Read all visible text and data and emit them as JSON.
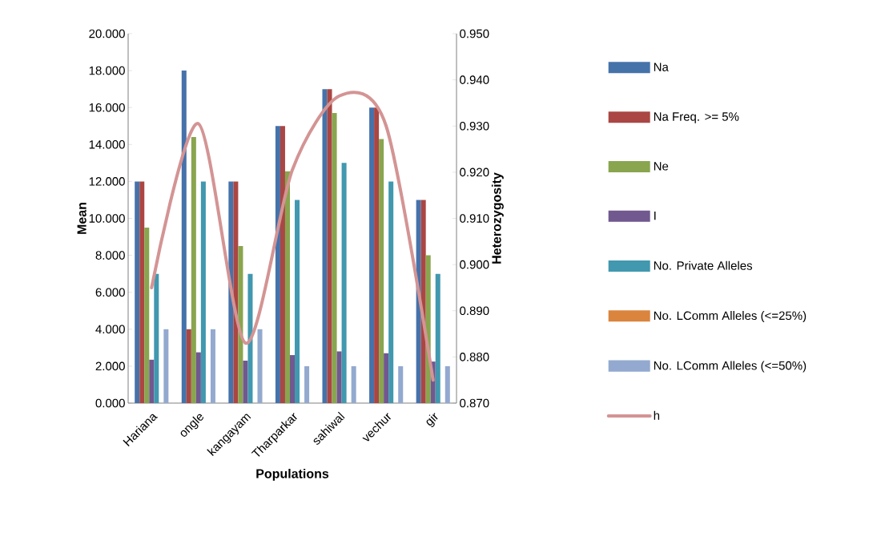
{
  "chart_data": {
    "type": "bar",
    "xlabel": "Populations",
    "ylabel": "Mean",
    "y2label": "Heterozygosity",
    "categories": [
      "Hariana",
      "ongle",
      "kangayam",
      "Tharparkar",
      "sahiwal",
      "vechur",
      "gir"
    ],
    "series": [
      {
        "name": "Na",
        "color": "#4672aa",
        "values": [
          12,
          18,
          12,
          15,
          17,
          16,
          11
        ]
      },
      {
        "name": "Na Freq. >= 5%",
        "color": "#aa4643",
        "values": [
          12,
          4,
          12,
          15,
          17,
          16,
          11
        ]
      },
      {
        "name": "Ne",
        "color": "#89a54e",
        "values": [
          9.5,
          14.4,
          8.5,
          12.55,
          15.7,
          14.3,
          8
        ]
      },
      {
        "name": "I",
        "color": "#71588f",
        "values": [
          2.35,
          2.75,
          2.3,
          2.6,
          2.8,
          2.7,
          2.25
        ]
      },
      {
        "name": "No. Private Alleles",
        "color": "#4198af",
        "values": [
          7,
          12,
          7,
          11,
          13,
          12,
          7
        ]
      },
      {
        "name": "No. LComm Alleles (<=25%)",
        "color": "#db843d",
        "values": [
          0,
          0,
          0,
          0,
          0,
          0,
          0
        ]
      },
      {
        "name": "No. LComm Alleles (<=50%)",
        "color": "#93a9cf",
        "values": [
          4,
          4,
          4,
          2,
          2,
          2,
          2
        ]
      },
      {
        "name": "h",
        "type": "line",
        "axis": "y2",
        "color": "#d49494",
        "values": [
          0.895,
          0.9305,
          0.883,
          0.9205,
          0.9365,
          0.93,
          0.875
        ]
      }
    ],
    "ylim": [
      0,
      20
    ],
    "yticks": [
      {
        "value": 0,
        "label": "0.000"
      },
      {
        "value": 2,
        "label": "2.000"
      },
      {
        "value": 4,
        "label": "4.000"
      },
      {
        "value": 6,
        "label": "6.000"
      },
      {
        "value": 8,
        "label": "8.000"
      },
      {
        "value": 10,
        "label": "10.000"
      },
      {
        "value": 12,
        "label": "12.000"
      },
      {
        "value": 14,
        "label": "14.000"
      },
      {
        "value": 16,
        "label": "16.000"
      },
      {
        "value": 18,
        "label": "18.000"
      },
      {
        "value": 20,
        "label": "20.000"
      }
    ],
    "y2lim": [
      0.87,
      0.95
    ],
    "y2ticks": [
      {
        "value": 0.87,
        "label": "0.870"
      },
      {
        "value": 0.88,
        "label": "0.880"
      },
      {
        "value": 0.89,
        "label": "0.890"
      },
      {
        "value": 0.9,
        "label": "0.900"
      },
      {
        "value": 0.91,
        "label": "0.910"
      },
      {
        "value": 0.92,
        "label": "0.920"
      },
      {
        "value": 0.93,
        "label": "0.930"
      },
      {
        "value": 0.94,
        "label": "0.940"
      },
      {
        "value": 0.95,
        "label": "0.950"
      }
    ],
    "legend": "right"
  }
}
